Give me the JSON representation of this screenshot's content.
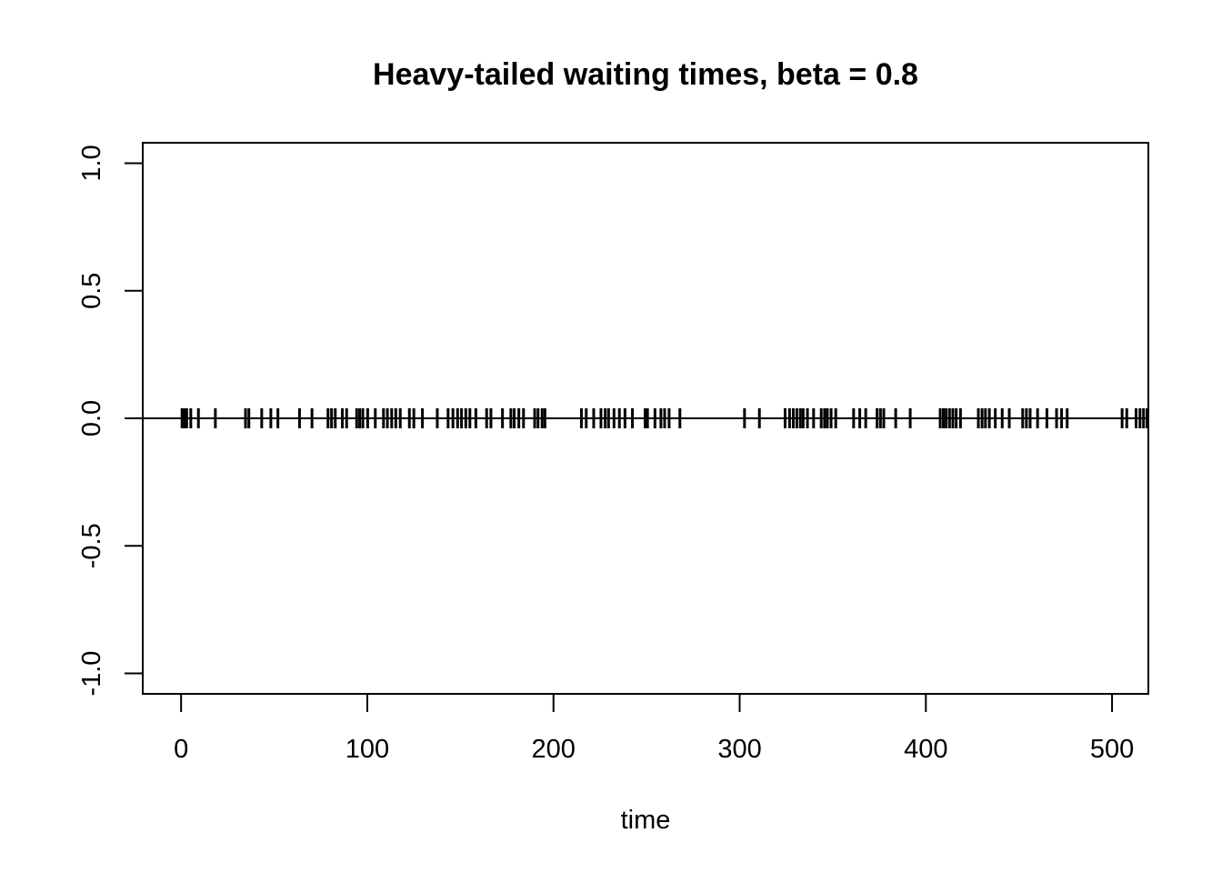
{
  "chart_data": {
    "type": "scatter",
    "title": "Heavy-tailed waiting times, beta = 0.8",
    "xlabel": "time",
    "ylabel": "",
    "xlim": [
      -20.6,
      519.5
    ],
    "ylim": [
      -1.08,
      1.08
    ],
    "x_ticks": [
      0,
      100,
      200,
      300,
      400,
      500
    ],
    "y_ticks": [
      -1.0,
      -0.5,
      0.0,
      0.5,
      1.0
    ],
    "x_tick_labels": [
      "0",
      "100",
      "200",
      "300",
      "400",
      "500"
    ],
    "y_tick_labels": [
      "-1.0",
      "-0.5",
      "0.0",
      "0.5",
      "1.0"
    ],
    "reference_line_y": 0,
    "marker": "vertical-tick",
    "series": [
      {
        "y_value": 0,
        "x": [
          0.5,
          1.8,
          3.0,
          5.2,
          9.3,
          18.4,
          34.6,
          36.4,
          43.3,
          48.2,
          52.0,
          63.6,
          70.3,
          78.9,
          80.8,
          82.8,
          86.6,
          88.9,
          94.3,
          95.9,
          97.6,
          100.2,
          104.3,
          108.7,
          110.8,
          113.1,
          115.3,
          117.7,
          122.6,
          125.0,
          129.6,
          137.6,
          143.4,
          146.0,
          148.5,
          150.6,
          152.9,
          155.1,
          158.3,
          164.1,
          166.4,
          172.6,
          177.1,
          178.9,
          181.4,
          183.9,
          189.9,
          191.7,
          193.9,
          195.4,
          215.0,
          217.6,
          221.6,
          225.5,
          227.8,
          229.6,
          232.5,
          235.4,
          238.4,
          242.4,
          249.2,
          250.5,
          254.5,
          257.7,
          259.7,
          262.1,
          267.9,
          302.6,
          310.6,
          324.4,
          326.8,
          328.8,
          330.7,
          332.6,
          334.1,
          336.4,
          339.7,
          343.8,
          345.6,
          347.1,
          349.1,
          351.6,
          361.2,
          364.5,
          367.7,
          373.8,
          375.6,
          377.4,
          383.8,
          391.6,
          407.7,
          409.4,
          410.9,
          412.7,
          414.5,
          416.3,
          418.6,
          428.2,
          430.2,
          432.0,
          434.1,
          437.3,
          441.0,
          444.8,
          452.0,
          454.0,
          456.0,
          460.0,
          465.0,
          470.2,
          472.9,
          475.9,
          505.4,
          507.9,
          512.9,
          515.0,
          516.9,
          518.8
        ]
      }
    ],
    "grid": false,
    "legend": "none"
  }
}
